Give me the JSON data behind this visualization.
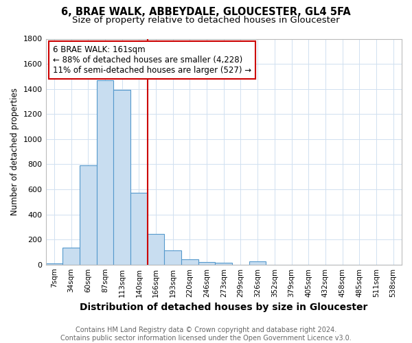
{
  "title1": "6, BRAE WALK, ABBEYDALE, GLOUCESTER, GL4 5FA",
  "title2": "Size of property relative to detached houses in Gloucester",
  "xlabel": "Distribution of detached houses by size in Gloucester",
  "ylabel": "Number of detached properties",
  "bar_labels": [
    "7sqm",
    "34sqm",
    "60sqm",
    "87sqm",
    "113sqm",
    "140sqm",
    "166sqm",
    "193sqm",
    "220sqm",
    "246sqm",
    "273sqm",
    "299sqm",
    "326sqm",
    "352sqm",
    "379sqm",
    "405sqm",
    "432sqm",
    "458sqm",
    "485sqm",
    "511sqm",
    "538sqm"
  ],
  "bar_values": [
    7,
    137,
    790,
    1470,
    1390,
    575,
    245,
    115,
    40,
    22,
    12,
    0,
    25,
    0,
    0,
    0,
    0,
    0,
    0,
    0,
    0
  ],
  "bar_color": "#c8ddf0",
  "bar_edge_color": "#5599cc",
  "red_line_x": 5.5,
  "annotation_text": "6 BRAE WALK: 161sqm\n← 88% of detached houses are smaller (4,228)\n11% of semi-detached houses are larger (527) →",
  "annotation_box_color": "#ffffff",
  "annotation_box_edge": "#cc0000",
  "red_line_color": "#cc0000",
  "footer1": "Contains HM Land Registry data © Crown copyright and database right 2024.",
  "footer2": "Contains public sector information licensed under the Open Government Licence v3.0.",
  "ylim": [
    0,
    1800
  ],
  "yticks": [
    0,
    200,
    400,
    600,
    800,
    1000,
    1200,
    1400,
    1600,
    1800
  ],
  "background_color": "#ffffff",
  "grid_color": "#d0e0f0",
  "title1_fontsize": 10.5,
  "title2_fontsize": 9.5,
  "xlabel_fontsize": 10,
  "ylabel_fontsize": 8.5,
  "tick_fontsize": 7.5,
  "footer_fontsize": 7.0
}
